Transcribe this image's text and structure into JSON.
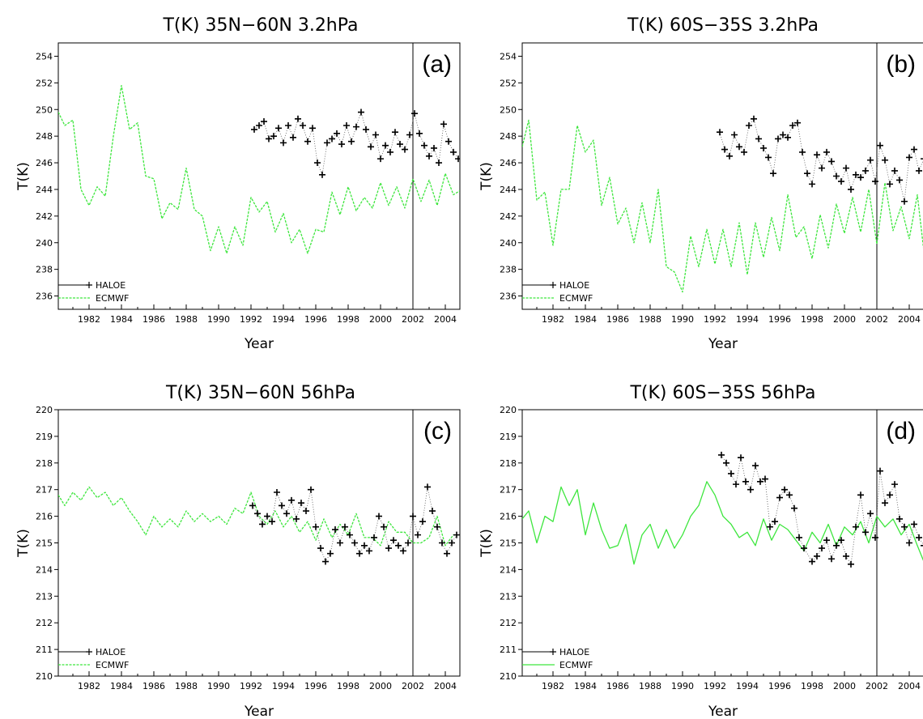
{
  "chart_data": [
    {
      "type": "line",
      "panel_label": "(a)",
      "title": "T(K)  35N−60N 3.2hPa",
      "xlabel": "Year",
      "ylabel": "T(K)",
      "xlim": [
        1980.1,
        2004.9
      ],
      "ylim": [
        235,
        255
      ],
      "xticks": [
        1982,
        1984,
        1986,
        1988,
        1990,
        1992,
        1994,
        1996,
        1998,
        2000,
        2002,
        2004
      ],
      "yticks": [
        236,
        238,
        240,
        242,
        244,
        246,
        248,
        250,
        252,
        254
      ],
      "vline": 2002,
      "legend": [
        "HALOE",
        "ECMWF"
      ],
      "series": [
        {
          "name": "ECMWF",
          "style": "dashed",
          "color": "#3ee63e",
          "x": [
            1980.1,
            1980.5,
            1981.0,
            1981.5,
            1982.0,
            1982.5,
            1983.0,
            1983.5,
            1984.0,
            1984.5,
            1985.0,
            1985.5,
            1986.0,
            1986.5,
            1987.0,
            1987.5,
            1988.0,
            1988.5,
            1989.0,
            1989.5,
            1990.0,
            1990.5,
            1991.0,
            1991.5,
            1992.0,
            1992.5,
            1993.0,
            1993.5,
            1994.0,
            1994.5,
            1995.0,
            1995.5,
            1996.0,
            1996.5,
            1997.0,
            1997.5,
            1998.0,
            1998.5,
            1999.0,
            1999.5,
            2000.0,
            2000.5,
            2001.0,
            2001.5,
            2002.0,
            2002.5,
            2003.0,
            2003.5,
            2004.0,
            2004.5,
            2004.9
          ],
          "y": [
            249.8,
            248.8,
            249.2,
            244.0,
            242.8,
            244.2,
            243.5,
            248.0,
            251.8,
            248.5,
            249.0,
            245.0,
            244.8,
            241.8,
            243.0,
            242.5,
            245.6,
            242.5,
            242.0,
            239.4,
            241.2,
            239.2,
            241.2,
            239.8,
            243.4,
            242.3,
            243.1,
            240.8,
            242.2,
            240.0,
            241.0,
            239.2,
            241.0,
            240.8,
            243.8,
            242.1,
            244.2,
            242.4,
            243.4,
            242.6,
            244.5,
            242.8,
            244.2,
            242.6,
            244.8,
            243.1,
            244.7,
            242.8,
            245.2,
            243.6,
            243.9
          ]
        },
        {
          "name": "HALOE",
          "style": "markers",
          "color": "#000000",
          "x": [
            1992.2,
            1992.5,
            1992.8,
            1993.1,
            1993.4,
            1993.7,
            1994.0,
            1994.3,
            1994.6,
            1994.9,
            1995.2,
            1995.5,
            1995.8,
            1996.1,
            1996.4,
            1996.7,
            1997.0,
            1997.3,
            1997.6,
            1997.9,
            1998.2,
            1998.5,
            1998.8,
            1999.1,
            1999.4,
            1999.7,
            2000.0,
            2000.3,
            2000.6,
            2000.9,
            2001.2,
            2001.5,
            2001.8,
            2002.1,
            2002.4,
            2002.7,
            2003.0,
            2003.3,
            2003.6,
            2003.9,
            2004.2,
            2004.5,
            2004.8
          ],
          "y": [
            248.5,
            248.8,
            249.1,
            247.8,
            248.0,
            248.6,
            247.5,
            248.8,
            247.9,
            249.3,
            248.8,
            247.6,
            248.6,
            246.0,
            245.1,
            247.5,
            247.8,
            248.2,
            247.4,
            248.8,
            247.6,
            248.7,
            249.8,
            248.5,
            247.2,
            248.1,
            246.3,
            247.3,
            246.8,
            248.3,
            247.4,
            247.0,
            248.1,
            249.7,
            248.2,
            247.3,
            246.5,
            247.1,
            246.0,
            248.9,
            247.6,
            246.8,
            246.3
          ]
        }
      ]
    },
    {
      "type": "line",
      "panel_label": "(b)",
      "title": "T(K)  60S−35S 3.2hPa",
      "xlabel": "Year",
      "ylabel": "T(K)",
      "xlim": [
        1980.1,
        2004.9
      ],
      "ylim": [
        235,
        255
      ],
      "xticks": [
        1982,
        1984,
        1986,
        1988,
        1990,
        1992,
        1994,
        1996,
        1998,
        2000,
        2002,
        2004
      ],
      "yticks": [
        236,
        238,
        240,
        242,
        244,
        246,
        248,
        250,
        252,
        254
      ],
      "vline": 2002,
      "legend": [
        "HALOE",
        "ECMWF"
      ],
      "series": [
        {
          "name": "ECMWF",
          "style": "dashed",
          "color": "#3ee63e",
          "x": [
            1980.1,
            1980.5,
            1981.0,
            1981.5,
            1982.0,
            1982.5,
            1983.0,
            1983.5,
            1984.0,
            1984.5,
            1985.0,
            1985.5,
            1986.0,
            1986.5,
            1987.0,
            1987.5,
            1988.0,
            1988.5,
            1989.0,
            1989.5,
            1990.0,
            1990.5,
            1991.0,
            1991.5,
            1992.0,
            1992.5,
            1993.0,
            1993.5,
            1994.0,
            1994.5,
            1995.0,
            1995.5,
            1996.0,
            1996.5,
            1997.0,
            1997.5,
            1998.0,
            1998.5,
            1999.0,
            1999.5,
            2000.0,
            2000.5,
            2001.0,
            2001.5,
            2002.0,
            2002.5,
            2003.0,
            2003.5,
            2004.0,
            2004.5,
            2004.9
          ],
          "y": [
            247.2,
            249.2,
            243.2,
            243.8,
            239.8,
            244.0,
            244.0,
            248.8,
            246.8,
            247.7,
            242.8,
            244.9,
            241.4,
            242.6,
            240.0,
            243.0,
            240.0,
            244.0,
            238.2,
            237.8,
            236.3,
            240.5,
            238.2,
            241.0,
            238.4,
            241.0,
            238.2,
            241.5,
            237.6,
            241.5,
            238.9,
            241.9,
            239.4,
            243.6,
            240.4,
            241.2,
            238.8,
            242.1,
            239.6,
            242.9,
            240.7,
            243.4,
            240.8,
            244.0,
            239.9,
            244.5,
            240.9,
            242.7,
            240.3,
            243.6,
            239.4
          ]
        },
        {
          "name": "HALOE",
          "style": "markers",
          "color": "#000000",
          "x": [
            1992.3,
            1992.6,
            1992.9,
            1993.2,
            1993.5,
            1993.8,
            1994.1,
            1994.4,
            1994.7,
            1995.0,
            1995.3,
            1995.6,
            1995.9,
            1996.2,
            1996.5,
            1996.8,
            1997.1,
            1997.4,
            1997.7,
            1998.0,
            1998.3,
            1998.6,
            1998.9,
            1999.2,
            1999.5,
            1999.8,
            2000.1,
            2000.4,
            2000.7,
            2001.0,
            2001.3,
            2001.6,
            2001.9,
            2002.2,
            2002.5,
            2002.8,
            2003.1,
            2003.4,
            2003.7,
            2004.0,
            2004.3,
            2004.6,
            2004.9
          ],
          "y": [
            248.3,
            247.0,
            246.5,
            248.1,
            247.2,
            246.8,
            248.8,
            249.3,
            247.8,
            247.1,
            246.4,
            245.2,
            247.8,
            248.1,
            247.9,
            248.8,
            249.0,
            246.8,
            245.2,
            244.4,
            246.6,
            245.6,
            246.8,
            246.1,
            245.0,
            244.6,
            245.6,
            244.0,
            245.1,
            244.9,
            245.4,
            246.2,
            244.6,
            247.3,
            246.2,
            244.4,
            245.4,
            244.7,
            243.1,
            246.4,
            247.0,
            245.4,
            246.3
          ]
        }
      ]
    },
    {
      "type": "line",
      "panel_label": "(c)",
      "title": "T(K)  35N−60N 56hPa",
      "xlabel": "Year",
      "ylabel": "T(K)",
      "xlim": [
        1980.1,
        2004.9
      ],
      "ylim": [
        210,
        220
      ],
      "xticks": [
        1982,
        1984,
        1986,
        1988,
        1990,
        1992,
        1994,
        1996,
        1998,
        2000,
        2002,
        2004
      ],
      "yticks": [
        210,
        211,
        212,
        213,
        214,
        215,
        216,
        217,
        218,
        219,
        220
      ],
      "vline": 2002,
      "legend": [
        "HALOE",
        "ECMWF"
      ],
      "series": [
        {
          "name": "ECMWF",
          "style": "dashed",
          "color": "#3ee63e",
          "x": [
            1980.1,
            1980.5,
            1981.0,
            1981.5,
            1982.0,
            1982.5,
            1983.0,
            1983.5,
            1984.0,
            1984.5,
            1985.0,
            1985.5,
            1986.0,
            1986.5,
            1987.0,
            1987.5,
            1988.0,
            1988.5,
            1989.0,
            1989.5,
            1990.0,
            1990.5,
            1991.0,
            1991.5,
            1992.0,
            1992.5,
            1993.0,
            1993.5,
            1994.0,
            1994.5,
            1995.0,
            1995.5,
            1996.0,
            1996.5,
            1997.0,
            1997.5,
            1998.0,
            1998.5,
            1999.0,
            1999.5,
            2000.0,
            2000.5,
            2001.0,
            2001.5,
            2002.0,
            2002.5,
            2003.0,
            2003.5,
            2004.0,
            2004.5,
            2004.9
          ],
          "y": [
            216.8,
            216.4,
            216.9,
            216.6,
            217.1,
            216.7,
            216.9,
            216.4,
            216.7,
            216.2,
            215.8,
            215.3,
            216.0,
            215.6,
            215.9,
            215.6,
            216.2,
            215.8,
            216.1,
            215.8,
            216.0,
            215.7,
            216.3,
            216.1,
            216.9,
            216.0,
            215.7,
            216.2,
            215.6,
            216.0,
            215.4,
            215.8,
            215.1,
            215.9,
            215.2,
            215.7,
            215.3,
            216.1,
            215.2,
            215.2,
            214.9,
            215.8,
            215.4,
            215.4,
            215.0,
            215.0,
            215.2,
            216.0,
            214.9,
            215.3,
            215.3
          ]
        },
        {
          "name": "HALOE",
          "style": "markers",
          "color": "#000000",
          "x": [
            1992.1,
            1992.4,
            1992.7,
            1993.0,
            1993.3,
            1993.6,
            1993.9,
            1994.2,
            1994.5,
            1994.8,
            1995.1,
            1995.4,
            1995.7,
            1996.0,
            1996.3,
            1996.6,
            1996.9,
            1997.2,
            1997.5,
            1997.8,
            1998.1,
            1998.4,
            1998.7,
            1999.0,
            1999.3,
            1999.6,
            1999.9,
            2000.2,
            2000.5,
            2000.8,
            2001.1,
            2001.4,
            2001.7,
            2002.0,
            2002.3,
            2002.6,
            2002.9,
            2003.2,
            2003.5,
            2003.8,
            2004.1,
            2004.4,
            2004.7
          ],
          "y": [
            216.4,
            216.1,
            215.7,
            216.0,
            215.8,
            216.9,
            216.4,
            216.1,
            216.6,
            215.9,
            216.5,
            216.2,
            217.0,
            215.6,
            214.8,
            214.3,
            214.6,
            215.5,
            215.0,
            215.6,
            215.3,
            215.0,
            214.6,
            214.9,
            214.7,
            215.2,
            216.0,
            215.6,
            214.8,
            215.1,
            214.9,
            214.7,
            215.0,
            216.0,
            215.3,
            215.8,
            217.1,
            216.2,
            215.6,
            215.0,
            214.6,
            215.0,
            215.3
          ]
        }
      ]
    },
    {
      "type": "line",
      "panel_label": "(d)",
      "title": "T(K)  60S−35S 56hPa",
      "xlabel": "Year",
      "ylabel": "T(K)",
      "xlim": [
        1980.1,
        2004.9
      ],
      "ylim": [
        210,
        220
      ],
      "xticks": [
        1982,
        1984,
        1986,
        1988,
        1990,
        1992,
        1994,
        1996,
        1998,
        2000,
        2002,
        2004
      ],
      "yticks": [
        210,
        211,
        212,
        213,
        214,
        215,
        216,
        217,
        218,
        219,
        220
      ],
      "vline": 2002,
      "legend": [
        "HALOE",
        "ECMWF"
      ],
      "series": [
        {
          "name": "ECMWF",
          "style": "solid",
          "color": "#3ee63e",
          "x": [
            1980.1,
            1980.5,
            1981.0,
            1981.5,
            1982.0,
            1982.5,
            1983.0,
            1983.5,
            1984.0,
            1984.5,
            1985.0,
            1985.5,
            1986.0,
            1986.5,
            1987.0,
            1987.5,
            1988.0,
            1988.5,
            1989.0,
            1989.5,
            1990.0,
            1990.5,
            1991.0,
            1991.5,
            1992.0,
            1992.5,
            1993.0,
            1993.5,
            1994.0,
            1994.5,
            1995.0,
            1995.5,
            1996.0,
            1996.5,
            1997.0,
            1997.5,
            1998.0,
            1998.5,
            1999.0,
            1999.5,
            2000.0,
            2000.5,
            2001.0,
            2001.5,
            2002.0,
            2002.5,
            2003.0,
            2003.5,
            2004.0,
            2004.5,
            2004.9
          ],
          "y": [
            215.9,
            216.2,
            215.0,
            216.0,
            215.8,
            217.1,
            216.4,
            217.0,
            215.3,
            216.5,
            215.5,
            214.8,
            214.9,
            215.7,
            214.2,
            215.3,
            215.7,
            214.8,
            215.5,
            214.8,
            215.3,
            216.0,
            216.4,
            217.3,
            216.8,
            216.0,
            215.7,
            215.2,
            215.4,
            214.9,
            215.9,
            215.1,
            215.7,
            215.5,
            215.1,
            214.7,
            215.4,
            215.0,
            215.7,
            214.9,
            215.6,
            215.3,
            215.8,
            215.0,
            216.0,
            215.6,
            215.9,
            215.3,
            215.7,
            214.9,
            214.3
          ]
        },
        {
          "name": "HALOE",
          "style": "markers",
          "color": "#000000",
          "x": [
            1992.4,
            1992.7,
            1993.0,
            1993.3,
            1993.6,
            1993.9,
            1994.2,
            1994.5,
            1994.8,
            1995.1,
            1995.4,
            1995.7,
            1996.0,
            1996.3,
            1996.6,
            1996.9,
            1997.2,
            1997.5,
            1998.0,
            1998.3,
            1998.6,
            1998.9,
            1999.2,
            1999.5,
            1999.8,
            2000.1,
            2000.4,
            2000.7,
            2001.0,
            2001.3,
            2001.6,
            2001.9,
            2002.2,
            2002.5,
            2002.8,
            2003.1,
            2003.4,
            2003.7,
            2004.0,
            2004.3,
            2004.6,
            2004.9
          ],
          "y": [
            218.3,
            218.0,
            217.6,
            217.2,
            218.2,
            217.3,
            217.0,
            217.9,
            217.3,
            217.4,
            215.6,
            215.8,
            216.7,
            217.0,
            216.8,
            216.3,
            215.2,
            214.8,
            214.3,
            214.5,
            214.8,
            215.1,
            214.4,
            214.9,
            215.1,
            214.5,
            214.2,
            215.6,
            216.8,
            215.4,
            216.1,
            215.2,
            217.7,
            216.5,
            216.8,
            217.2,
            215.9,
            215.6,
            215.0,
            215.7,
            215.2,
            214.9
          ]
        }
      ]
    }
  ]
}
